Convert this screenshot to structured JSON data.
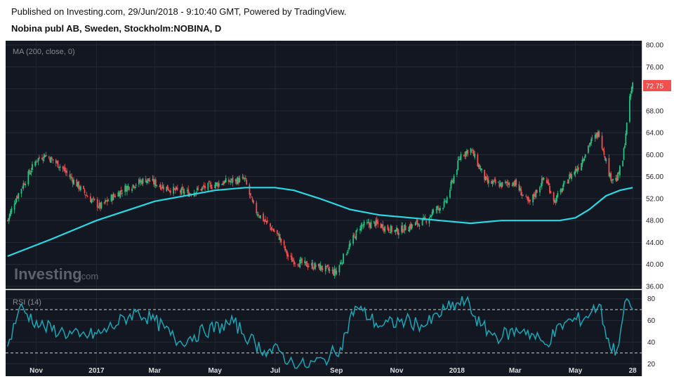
{
  "header": {
    "published": "Published on Investing.com, 29/Jun/2018 - 9:10:40 GMT, Powered by TradingView.",
    "symbol": "Nobina publ AB, Sweden, Stockholm:NOBINA, D"
  },
  "watermark": {
    "brand": "Investing",
    "suffix": ".com"
  },
  "colors": {
    "background": "#131722",
    "up": "#26c281",
    "down": "#f05050",
    "ma_line": "#2ad8e4",
    "rsi_line": "#1aa6b4",
    "price_badge": "#f05050"
  },
  "chart_data": [
    {
      "type": "candlestick",
      "title": "Nobina publ AB, Sweden, Stockholm:NOBINA, D",
      "indicator_label": "MA (200, close, 0)",
      "ylim": [
        36,
        80
      ],
      "y_ticks": [
        "80.00",
        "76.00",
        "72.00",
        "68.00",
        "64.00",
        "60.00",
        "56.00",
        "52.00",
        "48.00",
        "44.00",
        "40.00",
        "36.00"
      ],
      "x_ticks": [
        "Nov",
        "2017",
        "Mar",
        "May",
        "Jul",
        "Sep",
        "Nov",
        "2018",
        "Mar",
        "May",
        "28"
      ],
      "last_price": "72.75",
      "close_series": {
        "x": [
          "2016-10-03",
          "2016-10-10",
          "2016-10-20",
          "2016-11-01",
          "2016-11-10",
          "2016-11-25",
          "2016-12-10",
          "2016-12-25",
          "2017-01-05",
          "2017-01-15",
          "2017-01-31",
          "2017-02-20",
          "2017-03-05",
          "2017-03-20",
          "2017-04-05",
          "2017-04-20",
          "2017-05-10",
          "2017-05-31",
          "2017-06-10",
          "2017-06-25",
          "2017-07-05",
          "2017-07-15",
          "2017-07-31",
          "2017-08-15",
          "2017-08-31",
          "2017-09-10",
          "2017-09-25",
          "2017-10-10",
          "2017-10-31",
          "2017-11-15",
          "2017-11-30",
          "2017-12-10",
          "2017-12-20",
          "2018-01-05",
          "2018-01-15",
          "2018-01-31",
          "2018-02-15",
          "2018-02-28",
          "2018-03-15",
          "2018-03-31",
          "2018-04-10",
          "2018-04-25",
          "2018-05-05",
          "2018-05-15",
          "2018-05-25",
          "2018-06-05",
          "2018-06-12",
          "2018-06-18",
          "2018-06-21",
          "2018-06-25",
          "2018-06-28"
        ],
        "values": [
          48,
          51.5,
          55,
          59,
          60,
          58,
          55,
          52,
          50.5,
          52,
          54,
          55.5,
          54.5,
          53.5,
          53,
          54,
          55,
          55.5,
          50,
          47,
          45,
          41,
          40,
          39.5,
          38.5,
          42,
          47,
          47.5,
          46,
          47,
          48,
          50,
          51,
          60,
          61,
          55,
          54.5,
          55,
          51,
          56,
          51.5,
          56,
          58,
          62,
          64,
          56,
          55.5,
          59,
          64,
          70,
          73
        ]
      },
      "ma_series": {
        "x": [
          "2016-10-03",
          "2016-11-15",
          "2017-01-01",
          "2017-03-01",
          "2017-05-01",
          "2017-06-01",
          "2017-07-01",
          "2017-07-20",
          "2017-08-15",
          "2017-09-15",
          "2017-10-15",
          "2017-11-15",
          "2017-12-15",
          "2018-01-15",
          "2018-02-15",
          "2018-03-15",
          "2018-04-15",
          "2018-05-01",
          "2018-05-15",
          "2018-06-01",
          "2018-06-15",
          "2018-06-28"
        ],
        "values": [
          41.5,
          44.5,
          48,
          51.5,
          53.5,
          54,
          54,
          53.5,
          52,
          50,
          49,
          48.5,
          48,
          47.5,
          48,
          48,
          48,
          48.5,
          50,
          52.5,
          53.5,
          54
        ]
      }
    },
    {
      "type": "line",
      "indicator_label": "RSI (14)",
      "ylim": [
        15,
        85
      ],
      "y_ticks": [
        "80",
        "60",
        "40",
        "20"
      ],
      "bands": [
        30,
        70
      ],
      "series": [
        {
          "x": [
            "2016-10-03",
            "2016-10-15",
            "2016-11-05",
            "2016-11-25",
            "2016-12-15",
            "2017-01-05",
            "2017-02-10",
            "2017-03-01",
            "2017-03-25",
            "2017-04-20",
            "2017-05-20",
            "2017-06-05",
            "2017-06-20",
            "2017-07-05",
            "2017-07-15",
            "2017-07-31",
            "2017-08-20",
            "2017-09-05",
            "2017-09-20",
            "2017-10-15",
            "2017-11-10",
            "2017-11-30",
            "2017-12-20",
            "2018-01-10",
            "2018-01-25",
            "2018-02-10",
            "2018-03-10",
            "2018-03-31",
            "2018-04-20",
            "2018-05-10",
            "2018-05-25",
            "2018-06-05",
            "2018-06-12",
            "2018-06-18",
            "2018-06-22",
            "2018-06-28"
          ],
          "values": [
            36,
            72,
            55,
            50,
            45,
            48,
            68,
            60,
            40,
            50,
            58,
            43,
            32,
            32,
            22,
            18,
            24,
            35,
            73,
            55,
            60,
            55,
            70,
            78,
            55,
            45,
            52,
            38,
            58,
            62,
            75,
            35,
            33,
            62,
            80,
            70
          ]
        }
      ]
    }
  ]
}
